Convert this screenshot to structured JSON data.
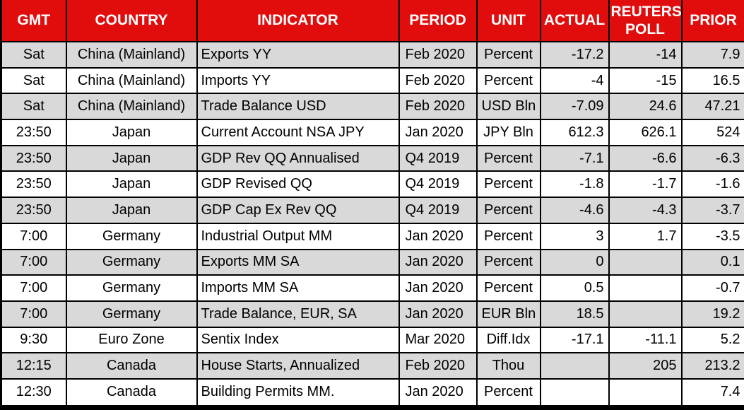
{
  "colors": {
    "header_bg": "#e10d0d",
    "header_text": "#ffffff",
    "row_stripe": "#d9d9d9",
    "row_plain": "#ffffff",
    "grid_border": "#000000"
  },
  "chart_data": {
    "type": "table",
    "title": "",
    "columns": [
      {
        "key": "gmt",
        "label": "GMT"
      },
      {
        "key": "country",
        "label": "COUNTRY"
      },
      {
        "key": "indicator",
        "label": "INDICATOR"
      },
      {
        "key": "period",
        "label": "PERIOD"
      },
      {
        "key": "unit",
        "label": "UNIT"
      },
      {
        "key": "actual",
        "label": "ACTUAL"
      },
      {
        "key": "poll",
        "label": "REUTERS POLL"
      },
      {
        "key": "prior",
        "label": "PRIOR"
      }
    ],
    "rows": [
      {
        "gmt": "Sat",
        "country": "China (Mainland)",
        "indicator": "Exports YY",
        "period": "Feb 2020",
        "unit": "Percent",
        "actual": "-17.2",
        "poll": "-14",
        "prior": "7.9"
      },
      {
        "gmt": "Sat",
        "country": "China (Mainland)",
        "indicator": "Imports YY",
        "period": "Feb 2020",
        "unit": "Percent",
        "actual": "-4",
        "poll": "-15",
        "prior": "16.5"
      },
      {
        "gmt": "Sat",
        "country": "China (Mainland)",
        "indicator": "Trade Balance USD",
        "period": "Feb 2020",
        "unit": "USD Bln",
        "actual": "-7.09",
        "poll": "24.6",
        "prior": "47.21"
      },
      {
        "gmt": "23:50",
        "country": "Japan",
        "indicator": "Current Account NSA JPY",
        "period": "Jan 2020",
        "unit": "JPY Bln",
        "actual": "612.3",
        "poll": "626.1",
        "prior": "524"
      },
      {
        "gmt": "23:50",
        "country": "Japan",
        "indicator": "GDP Rev QQ Annualised",
        "period": "Q4 2019",
        "unit": "Percent",
        "actual": "-7.1",
        "poll": "-6.6",
        "prior": "-6.3"
      },
      {
        "gmt": "23:50",
        "country": "Japan",
        "indicator": "GDP Revised QQ",
        "period": "Q4 2019",
        "unit": "Percent",
        "actual": "-1.8",
        "poll": "-1.7",
        "prior": "-1.6"
      },
      {
        "gmt": "23:50",
        "country": "Japan",
        "indicator": "GDP Cap Ex Rev QQ",
        "period": "Q4 2019",
        "unit": "Percent",
        "actual": "-4.6",
        "poll": "-4.3",
        "prior": "-3.7"
      },
      {
        "gmt": "7:00",
        "country": "Germany",
        "indicator": "Industrial Output MM",
        "period": "Jan 2020",
        "unit": "Percent",
        "actual": "3",
        "poll": "1.7",
        "prior": "-3.5"
      },
      {
        "gmt": "7:00",
        "country": "Germany",
        "indicator": "Exports MM SA",
        "period": "Jan 2020",
        "unit": "Percent",
        "actual": "0",
        "poll": "",
        "prior": "0.1"
      },
      {
        "gmt": "7:00",
        "country": "Germany",
        "indicator": "Imports MM SA",
        "period": "Jan 2020",
        "unit": "Percent",
        "actual": "0.5",
        "poll": "",
        "prior": "-0.7"
      },
      {
        "gmt": "7:00",
        "country": "Germany",
        "indicator": "Trade Balance, EUR, SA",
        "period": "Jan 2020",
        "unit": "EUR Bln",
        "actual": "18.5",
        "poll": "",
        "prior": "19.2"
      },
      {
        "gmt": "9:30",
        "country": "Euro Zone",
        "indicator": "Sentix Index",
        "period": "Mar 2020",
        "unit": "Diff.Idx",
        "actual": "-17.1",
        "poll": "-11.1",
        "prior": "5.2"
      },
      {
        "gmt": "12:15",
        "country": "Canada",
        "indicator": "House Starts, Annualized",
        "period": "Feb 2020",
        "unit": "Thou",
        "actual": "",
        "poll": "205",
        "prior": "213.2"
      },
      {
        "gmt": "12:30",
        "country": "Canada",
        "indicator": "Building Permits MM.",
        "period": "Jan 2020",
        "unit": "Percent",
        "actual": "",
        "poll": "",
        "prior": "7.4"
      }
    ]
  }
}
